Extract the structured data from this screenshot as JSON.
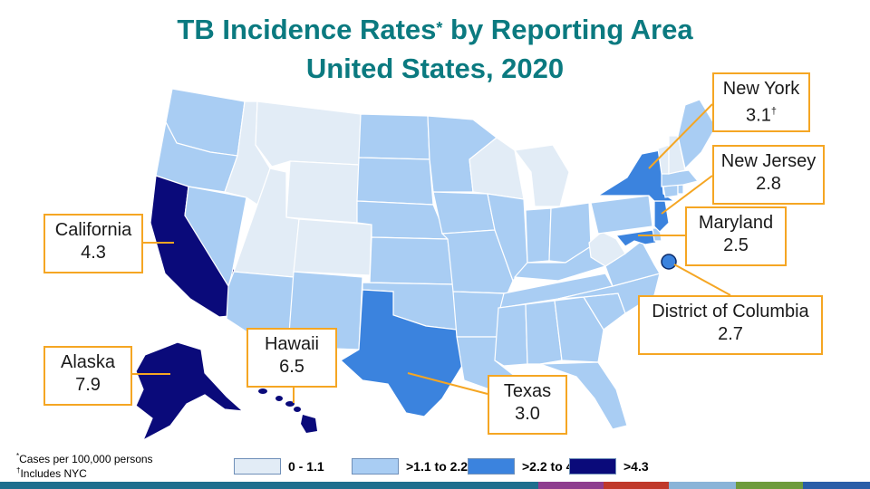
{
  "title": {
    "line1_text": "TB Incidence Rates",
    "line1_mark": "*",
    "line1_tail": " by Reporting Area",
    "line2": "United States, 2020"
  },
  "callouts": [
    {
      "id": "new-york",
      "name": "New York",
      "value": "3.1",
      "mark": "†"
    },
    {
      "id": "new-jersey",
      "name": "New Jersey",
      "value": "2.8",
      "mark": ""
    },
    {
      "id": "maryland",
      "name": "Maryland",
      "value": "2.5",
      "mark": ""
    },
    {
      "id": "district-of-columbia",
      "name": "District of Columbia",
      "value": "2.7",
      "mark": ""
    },
    {
      "id": "texas",
      "name": "Texas",
      "value": "3.0",
      "mark": ""
    },
    {
      "id": "hawaii",
      "name": "Hawaii",
      "value": "6.5",
      "mark": ""
    },
    {
      "id": "alaska",
      "name": "Alaska",
      "value": "7.9",
      "mark": ""
    },
    {
      "id": "california",
      "name": "California",
      "value": "4.3",
      "mark": ""
    }
  ],
  "footnotes": {
    "mark1": "*",
    "note1": "Cases per 100,000  persons",
    "mark2": "†",
    "note2": "Includes NYC"
  },
  "legend": [
    {
      "label": "0 - 1.1",
      "color": "#e2ecf6"
    },
    {
      "label": ">1.1 to 2.2",
      "color": "#a9cdf3"
    },
    {
      "label": ">2.2 to 4.3",
      "color": "#3b83de"
    },
    {
      "label": ">4.3",
      "color": "#0a0a7a"
    }
  ],
  "colors": {
    "title": "#0b7a80",
    "callout_border": "#f5a623",
    "bottom_bar": [
      "#1e6e8e",
      "#1e6e8e",
      "#8f3d8f",
      "#c0392b",
      "#8ab4d8",
      "#6e9b3c",
      "#2a5ea8"
    ]
  }
}
